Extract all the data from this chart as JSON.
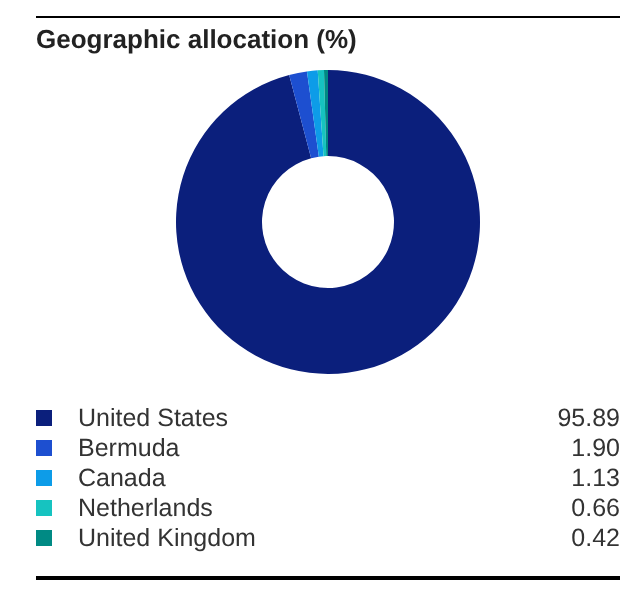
{
  "chart_data": {
    "type": "donut",
    "title": "Geographic allocation (%)",
    "categories": [
      "United States",
      "Bermuda",
      "Canada",
      "Netherlands",
      "United Kingdom"
    ],
    "values": [
      95.89,
      1.9,
      1.13,
      0.66,
      0.42
    ],
    "colors": [
      "#0b1f7c",
      "#1d4fd0",
      "#0d9ce8",
      "#16c3c0",
      "#008a84"
    ],
    "value_labels": [
      "95.89",
      "1.90",
      "1.13",
      "0.66",
      "0.42"
    ],
    "legend": "bottom"
  }
}
